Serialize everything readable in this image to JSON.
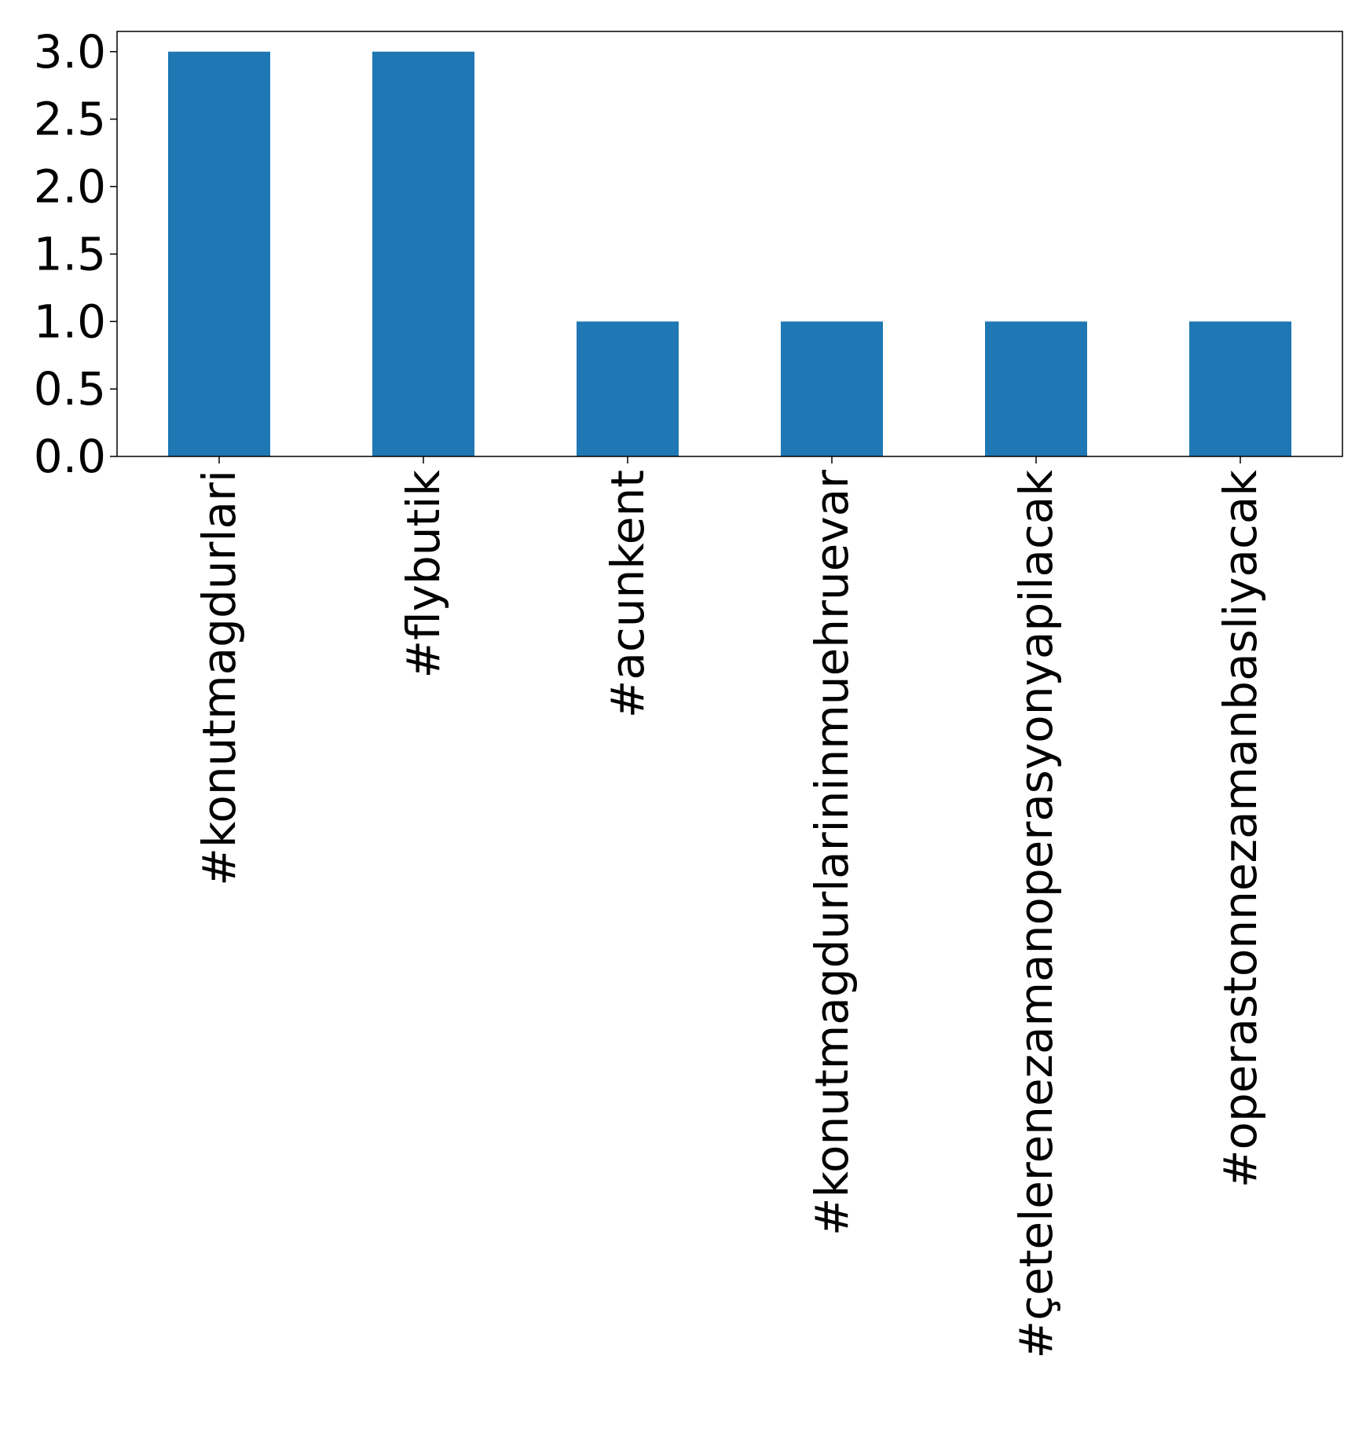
{
  "chart_data": {
    "type": "bar",
    "categories": [
      "#konutmagdurlari",
      "#flybutik",
      "#acunkent",
      "#konutmagdurlarininmuehruevar",
      "#çetelerenezamanoperasyonyapilacak",
      "#operastonnezamanbasliyacak"
    ],
    "values": [
      3,
      3,
      1,
      1,
      1,
      1
    ],
    "ylim": [
      0,
      3.15
    ],
    "yticks": [
      0.0,
      0.5,
      1.0,
      1.5,
      2.0,
      2.5,
      3.0
    ],
    "ytick_labels": [
      "0.0",
      "0.5",
      "1.0",
      "1.5",
      "2.0",
      "2.5",
      "3.0"
    ],
    "bar_color": "#1f77b4",
    "grid": false,
    "legend": "none"
  }
}
